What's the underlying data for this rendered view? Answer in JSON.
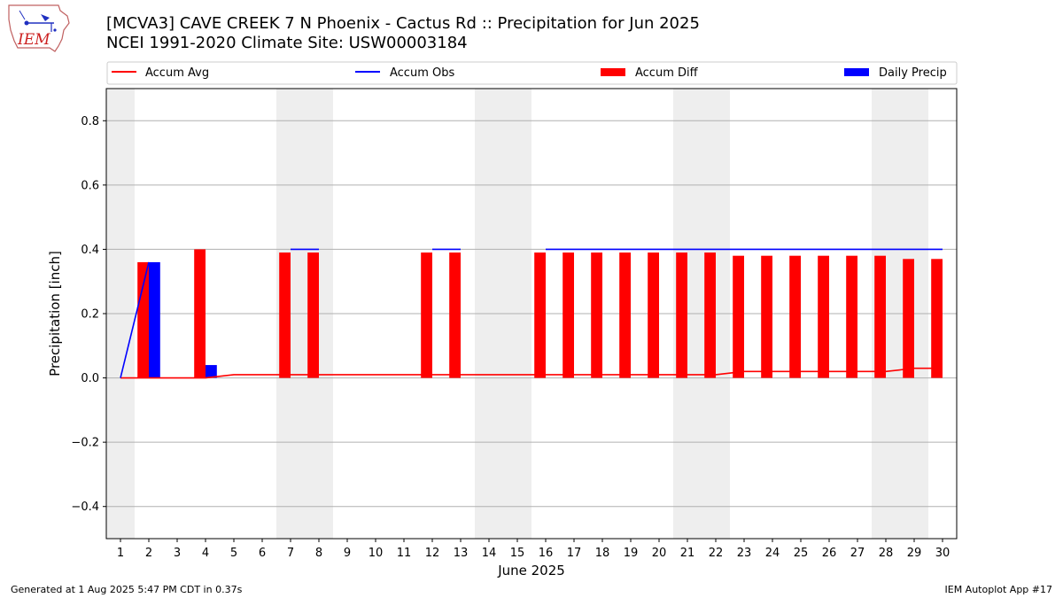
{
  "header": {
    "logo_text": "IEM",
    "title_line1": "[MCVA3] CAVE CREEK 7 N Phoenix - Cactus Rd :: Precipitation for Jun 2025",
    "title_line2": "NCEI 1991-2020 Climate Site: USW00003184"
  },
  "footer": {
    "left": "Generated at 1 Aug 2025 5:47 PM CDT in 0.37s",
    "right": "IEM Autoplot App #17"
  },
  "colors": {
    "avg": "#ff0000",
    "obs": "#0000ff",
    "diff": "#ff0000",
    "daily": "#0000ff",
    "weekend_shade": "#eeeeee",
    "grid": "#b0b0b0"
  },
  "chart_data": {
    "type": "bar",
    "title": "[MCVA3] CAVE CREEK 7 N Phoenix - Cactus Rd :: Precipitation for Jun 2025",
    "xlabel": "June 2025",
    "ylabel": "Precipitation [inch]",
    "xlim": [
      0.5,
      30.5
    ],
    "ylim": [
      -0.5,
      0.9
    ],
    "x": [
      1,
      2,
      3,
      4,
      5,
      6,
      7,
      8,
      9,
      10,
      11,
      12,
      13,
      14,
      15,
      16,
      17,
      18,
      19,
      20,
      21,
      22,
      23,
      24,
      25,
      26,
      27,
      28,
      29,
      30
    ],
    "y_ticks": [
      "−0.4",
      "−0.2",
      "0.0",
      "0.2",
      "0.4",
      "0.6",
      "0.8"
    ],
    "y_tick_values": [
      -0.4,
      -0.2,
      0.0,
      0.2,
      0.4,
      0.6,
      0.8
    ],
    "grid": true,
    "legend_position": "top",
    "shaded_days": [
      [
        0.5,
        1.5
      ],
      [
        6.5,
        8.5
      ],
      [
        13.5,
        15.5
      ],
      [
        20.5,
        22.5
      ],
      [
        27.5,
        29.5
      ]
    ],
    "series": [
      {
        "name": "Accum Avg",
        "kind": "line",
        "color": "#ff0000",
        "values": [
          0.0,
          0.0,
          0.0,
          0.0,
          0.01,
          0.01,
          0.01,
          0.01,
          0.01,
          0.01,
          0.01,
          0.01,
          0.01,
          0.01,
          0.01,
          0.01,
          0.01,
          0.01,
          0.01,
          0.01,
          0.01,
          0.01,
          0.02,
          0.02,
          0.02,
          0.02,
          0.02,
          0.02,
          0.03,
          0.03
        ]
      },
      {
        "name": "Accum Obs",
        "kind": "line",
        "color": "#0000ff",
        "segments": [
          {
            "x": [
              1,
              2
            ],
            "y": [
              0.0,
              0.36
            ]
          },
          {
            "x": [
              7,
              8
            ],
            "y": [
              0.4,
              0.4
            ]
          },
          {
            "x": [
              12,
              13
            ],
            "y": [
              0.4,
              0.4
            ]
          },
          {
            "x": [
              16,
              17,
              18,
              19,
              20,
              21,
              22,
              23,
              24,
              25,
              26,
              27,
              28,
              29,
              30
            ],
            "y": [
              0.4,
              0.4,
              0.4,
              0.4,
              0.4,
              0.4,
              0.4,
              0.4,
              0.4,
              0.4,
              0.4,
              0.4,
              0.4,
              0.4,
              0.4
            ]
          }
        ]
      },
      {
        "name": "Accum Diff",
        "kind": "bar",
        "color": "#ff0000",
        "values": [
          0,
          0.36,
          0,
          0.4,
          0,
          0,
          0.39,
          0.39,
          0,
          0,
          0,
          0.39,
          0.39,
          0,
          0,
          0.39,
          0.39,
          0.39,
          0.39,
          0.39,
          0.39,
          0.39,
          0.38,
          0.38,
          0.38,
          0.38,
          0.38,
          0.38,
          0.37,
          0.37
        ]
      },
      {
        "name": "Daily Precip",
        "kind": "bar",
        "color": "#0000ff",
        "values": [
          0,
          0.36,
          0,
          0.04,
          0,
          0,
          0,
          0,
          0,
          0,
          0,
          0,
          0,
          0,
          0,
          0,
          0,
          0,
          0,
          0,
          0,
          0,
          0,
          0,
          0,
          0,
          0,
          0,
          0,
          0
        ]
      }
    ]
  }
}
